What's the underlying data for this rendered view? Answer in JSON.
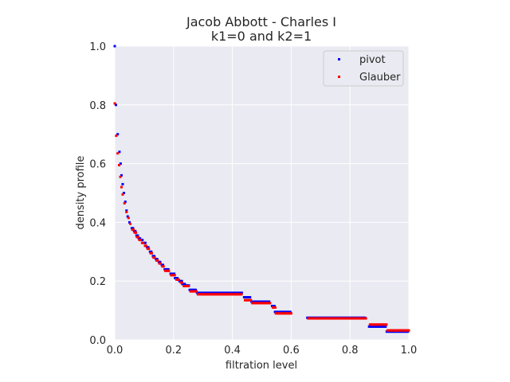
{
  "chart_data": {
    "type": "scatter",
    "title_line1": "Jacob Abbott - Charles I",
    "title_line2": "k1=0 and k2=1",
    "xlabel": "filtration level",
    "ylabel": "density profile",
    "xlim": [
      0,
      1
    ],
    "ylim": [
      0,
      1
    ],
    "xticks": [
      "0.0",
      "0.2",
      "0.4",
      "0.6",
      "0.8",
      "1.0"
    ],
    "yticks": [
      "0.0",
      "0.2",
      "0.4",
      "0.6",
      "0.8",
      "1.0"
    ],
    "grid": true,
    "legend_position": "upper right",
    "series": [
      {
        "name": "pivot",
        "color": "#0000ff",
        "segments": [
          [
            0.0,
            1.0,
            1
          ],
          [
            0.004,
            0.8,
            1
          ],
          [
            0.01,
            0.7,
            1
          ],
          [
            0.016,
            0.64,
            1
          ],
          [
            0.02,
            0.6,
            1
          ],
          [
            0.023,
            0.56,
            1
          ],
          [
            0.027,
            0.53,
            1
          ],
          [
            0.031,
            0.5,
            1
          ],
          [
            0.036,
            0.47,
            1
          ],
          [
            0.04,
            0.44,
            1
          ],
          [
            0.044,
            0.42,
            1
          ],
          [
            0.05,
            0.4,
            1
          ],
          [
            0.058,
            0.38,
            2
          ],
          [
            0.066,
            0.37,
            2
          ],
          [
            0.074,
            0.355,
            2
          ],
          [
            0.082,
            0.345,
            2
          ],
          [
            0.09,
            0.34,
            2
          ],
          [
            0.1,
            0.33,
            2
          ],
          [
            0.11,
            0.315,
            2
          ],
          [
            0.12,
            0.3,
            2
          ],
          [
            0.13,
            0.285,
            2
          ],
          [
            0.14,
            0.275,
            2
          ],
          [
            0.15,
            0.265,
            2
          ],
          [
            0.16,
            0.255,
            2
          ],
          [
            0.17,
            0.24,
            4
          ],
          [
            0.19,
            0.225,
            4
          ],
          [
            0.205,
            0.21,
            3
          ],
          [
            0.22,
            0.2,
            3
          ],
          [
            0.23,
            0.19,
            3
          ],
          [
            0.24,
            0.185,
            4
          ],
          [
            0.255,
            0.17,
            6
          ],
          [
            0.28,
            0.16,
            39
          ],
          [
            0.44,
            0.145,
            6
          ],
          [
            0.465,
            0.13,
            16
          ],
          [
            0.535,
            0.115,
            3
          ],
          [
            0.545,
            0.095,
            14
          ],
          [
            0.655,
            0.075,
            50
          ],
          [
            0.865,
            0.045,
            15
          ],
          [
            0.925,
            0.028,
            19
          ]
        ]
      },
      {
        "name": "Glauber",
        "color": "#ff0000",
        "segments": [
          [
            0.0,
            0.805,
            1
          ],
          [
            0.005,
            0.695,
            1
          ],
          [
            0.01,
            0.635,
            1
          ],
          [
            0.015,
            0.595,
            1
          ],
          [
            0.019,
            0.555,
            1
          ],
          [
            0.023,
            0.52,
            1
          ],
          [
            0.027,
            0.495,
            1
          ],
          [
            0.033,
            0.465,
            1
          ],
          [
            0.04,
            0.435,
            1
          ],
          [
            0.047,
            0.415,
            1
          ],
          [
            0.053,
            0.395,
            1
          ],
          [
            0.06,
            0.375,
            2
          ],
          [
            0.068,
            0.365,
            2
          ],
          [
            0.076,
            0.35,
            2
          ],
          [
            0.084,
            0.34,
            2
          ],
          [
            0.093,
            0.33,
            2
          ],
          [
            0.103,
            0.32,
            2
          ],
          [
            0.112,
            0.31,
            2
          ],
          [
            0.122,
            0.295,
            2
          ],
          [
            0.132,
            0.28,
            2
          ],
          [
            0.142,
            0.27,
            2
          ],
          [
            0.152,
            0.26,
            2
          ],
          [
            0.162,
            0.25,
            2
          ],
          [
            0.172,
            0.235,
            4
          ],
          [
            0.192,
            0.22,
            4
          ],
          [
            0.21,
            0.205,
            3
          ],
          [
            0.225,
            0.195,
            2
          ],
          [
            0.235,
            0.183,
            5
          ],
          [
            0.258,
            0.165,
            6
          ],
          [
            0.283,
            0.155,
            38
          ],
          [
            0.443,
            0.135,
            6
          ],
          [
            0.468,
            0.125,
            16
          ],
          [
            0.538,
            0.11,
            3
          ],
          [
            0.548,
            0.09,
            14
          ],
          [
            0.658,
            0.073,
            50
          ],
          [
            0.868,
            0.052,
            15
          ],
          [
            0.928,
            0.032,
            19
          ]
        ]
      }
    ]
  }
}
